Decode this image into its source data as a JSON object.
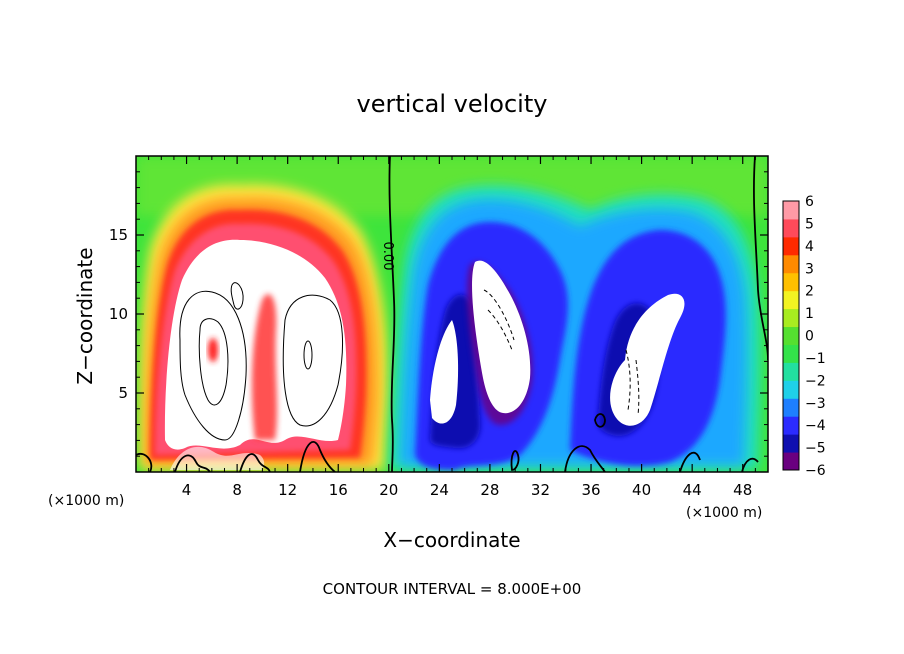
{
  "chart_data": {
    "type": "heatmap",
    "title": "vertical velocity",
    "xlabel": "X−coordinate",
    "ylabel": "Z−coordinate",
    "x_units": "(×1000 m)",
    "y_units": "(×1000 m)",
    "xlim": [
      0,
      50
    ],
    "ylim": [
      0,
      20
    ],
    "x_ticks": [
      4,
      8,
      12,
      16,
      20,
      24,
      28,
      32,
      36,
      40,
      44,
      48
    ],
    "y_ticks": [
      5,
      10,
      15
    ],
    "colorbar": {
      "min": -6,
      "max": 6,
      "ticks": [
        6,
        5,
        4,
        3,
        2,
        1,
        0,
        -1,
        -2,
        -3,
        -4,
        -5,
        -6
      ],
      "tick_labels": [
        "6",
        "5",
        "4",
        "3",
        "2",
        "1",
        "0",
        "−1",
        "−2",
        "−3",
        "−4",
        "−5",
        "−6"
      ],
      "colors": [
        "#6a0080",
        "#1010b0",
        "#2b2bff",
        "#1e7fff",
        "#1fd0e8",
        "#22e0a0",
        "#33e34a",
        "#55e030",
        "#a8ec20",
        "#f3f322",
        "#ffc000",
        "#ff8a00",
        "#ff2a00",
        "#ff4a5a",
        "#ff9aa6"
      ]
    },
    "features": [
      {
        "name": "updraft",
        "sign": "positive",
        "x": 9,
        "z": 10,
        "rx": 8.5,
        "rz": 7.5,
        "peak": 12
      },
      {
        "name": "downdraft-1",
        "sign": "negative",
        "x": 28,
        "z": 9,
        "rx": 6.5,
        "rz": 7,
        "peak": -9
      },
      {
        "name": "downdraft-2",
        "sign": "negative",
        "x": 40,
        "z": 8.5,
        "rx": 6,
        "rz": 7,
        "peak": -9
      }
    ],
    "contour_label": "0.00",
    "contour_interval_label": "CONTOUR INTERVAL = 8.000E+00"
  }
}
